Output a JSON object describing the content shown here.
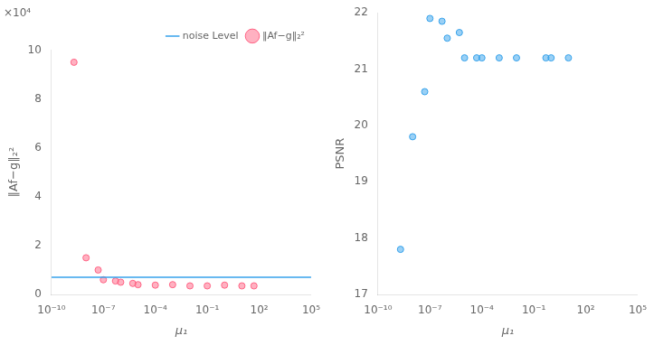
{
  "chart_data": [
    {
      "type": "scatter",
      "log": "x",
      "grid": false,
      "legend": "upper right",
      "annotation": "×10⁴",
      "xlabel": "μ₁",
      "ylabel": "‖Af−g‖₂²",
      "xlim": [
        1e-10,
        100000.0
      ],
      "xticks": [
        {
          "value": 1e-10,
          "label": "10⁻¹⁰"
        },
        {
          "value": 1e-07,
          "label": "10⁻⁷"
        },
        {
          "value": 0.0001,
          "label": "10⁻⁴"
        },
        {
          "value": 0.1,
          "label": "10⁻¹"
        },
        {
          "value": 100.0,
          "label": "10²"
        },
        {
          "value": 100000.0,
          "label": "10⁵"
        }
      ],
      "ylim": [
        0,
        10
      ],
      "yticks": [
        0,
        2,
        4,
        6,
        8,
        10
      ],
      "series": [
        {
          "name": "noise Level",
          "type": "hline",
          "line_style": "solid",
          "values": [
            0.7
          ]
        },
        {
          "name": "‖Af−g‖₂²",
          "type": "scatter",
          "marker": "circle",
          "x": [
            2e-09,
            1e-08,
            5e-08,
            1e-07,
            5e-07,
            1e-06,
            5e-06,
            1e-05,
            0.0001,
            0.001,
            0.01,
            0.1,
            1.0,
            10.0,
            50.0
          ],
          "values": [
            9.5,
            1.5,
            1.0,
            0.6,
            0.55,
            0.5,
            0.45,
            0.4,
            0.38,
            0.4,
            0.35,
            0.35,
            0.38,
            0.35,
            0.35
          ]
        }
      ]
    },
    {
      "type": "scatter",
      "log": "x",
      "grid": false,
      "xlabel": "μ₁",
      "ylabel": "PSNR",
      "xlim": [
        1e-10,
        100000.0
      ],
      "xticks": [
        {
          "value": 1e-10,
          "label": "10⁻¹⁰"
        },
        {
          "value": 1e-07,
          "label": "10⁻⁷"
        },
        {
          "value": 0.0001,
          "label": "10⁻⁴"
        },
        {
          "value": 0.1,
          "label": "10⁻¹"
        },
        {
          "value": 100.0,
          "label": "10²"
        },
        {
          "value": 100000.0,
          "label": "10⁵"
        }
      ],
      "ylim": [
        17,
        22
      ],
      "yticks": [
        17,
        18,
        19,
        20,
        21,
        22
      ],
      "series": [
        {
          "type": "scatter",
          "marker": "circle",
          "x": [
            2e-09,
            1e-08,
            5e-08,
            1e-07,
            5e-07,
            1e-06,
            5e-06,
            1e-05,
            5e-05,
            0.0001,
            0.001,
            0.01,
            0.5,
            1.0,
            10.0
          ],
          "values": [
            17.8,
            19.8,
            20.6,
            21.9,
            21.85,
            21.55,
            21.65,
            21.2,
            21.2,
            21.2,
            21.2,
            21.2,
            21.2,
            21.2,
            21.2
          ]
        }
      ]
    }
  ]
}
